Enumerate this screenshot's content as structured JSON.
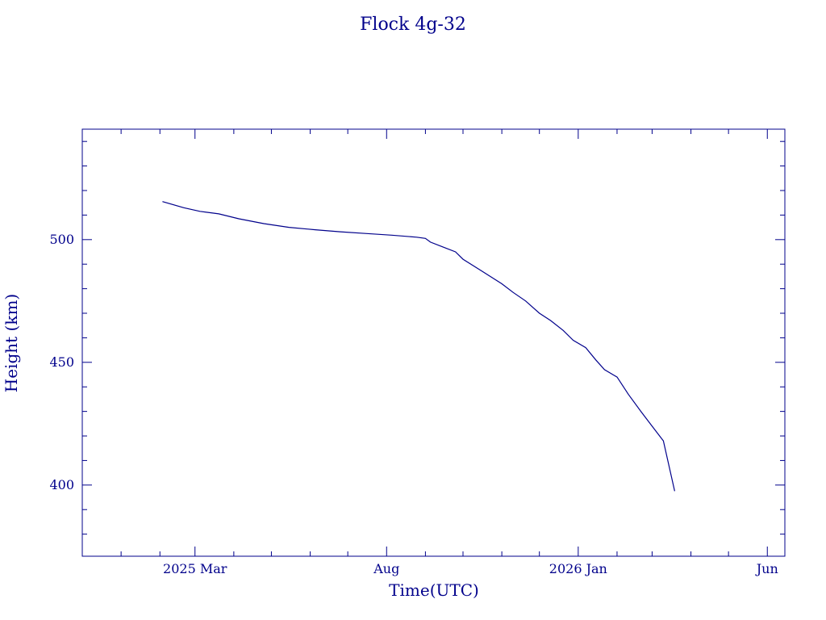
{
  "chart_data": {
    "type": "line",
    "title": "Flock 4g-32",
    "xlabel": "Time(UTC)",
    "ylabel": "Height (km)",
    "xlim": [
      "2024-12-01",
      "2026-06-15"
    ],
    "ylim": [
      371,
      545
    ],
    "x_ticks": [
      {
        "date": "2025-03-01",
        "label": "2025 Mar"
      },
      {
        "date": "2025-08-01",
        "label": "Aug"
      },
      {
        "date": "2026-01-01",
        "label": "2026 Jan"
      },
      {
        "date": "2026-06-01",
        "label": "Jun"
      }
    ],
    "x_minor_ticks": [
      "2025-01-01",
      "2025-02-01",
      "2025-04-01",
      "2025-05-01",
      "2025-06-01",
      "2025-07-01",
      "2025-09-01",
      "2025-10-01",
      "2025-11-01",
      "2025-12-01",
      "2026-02-01",
      "2026-03-01",
      "2026-04-01",
      "2026-05-01"
    ],
    "y_ticks": [
      {
        "value": 400,
        "label": "400"
      },
      {
        "value": 450,
        "label": "450"
      },
      {
        "value": 500,
        "label": "500"
      }
    ],
    "y_minor_ticks": [
      380,
      390,
      410,
      420,
      430,
      440,
      460,
      470,
      480,
      490,
      510,
      520,
      530,
      540
    ],
    "series": [
      {
        "x": [
          "2025-02-03",
          "2025-02-20",
          "2025-03-05",
          "2025-03-20",
          "2025-04-05",
          "2025-04-25",
          "2025-05-15",
          "2025-06-05",
          "2025-06-25",
          "2025-07-15",
          "2025-08-05",
          "2025-08-25",
          "2025-09-01",
          "2025-09-05",
          "2025-09-15",
          "2025-09-25",
          "2025-10-01",
          "2025-10-15",
          "2025-11-01",
          "2025-11-10",
          "2025-11-20",
          "2025-12-01",
          "2025-12-10",
          "2025-12-20",
          "2025-12-28",
          "2026-01-07",
          "2026-01-15",
          "2026-01-22",
          "2026-02-01",
          "2026-02-10",
          "2026-02-20",
          "2026-03-01",
          "2026-03-10",
          "2026-03-19"
        ],
        "y": [
          515.5,
          513.0,
          511.5,
          510.5,
          508.5,
          506.5,
          505.0,
          504.0,
          503.2,
          502.5,
          501.8,
          501.0,
          500.5,
          499.0,
          497.0,
          495.0,
          492.0,
          487.5,
          482.0,
          478.5,
          475.0,
          470.0,
          467.0,
          463.0,
          459.0,
          456.0,
          451.0,
          447.0,
          444.0,
          437.0,
          430.0,
          424.0,
          418.0,
          397.5
        ]
      }
    ]
  }
}
